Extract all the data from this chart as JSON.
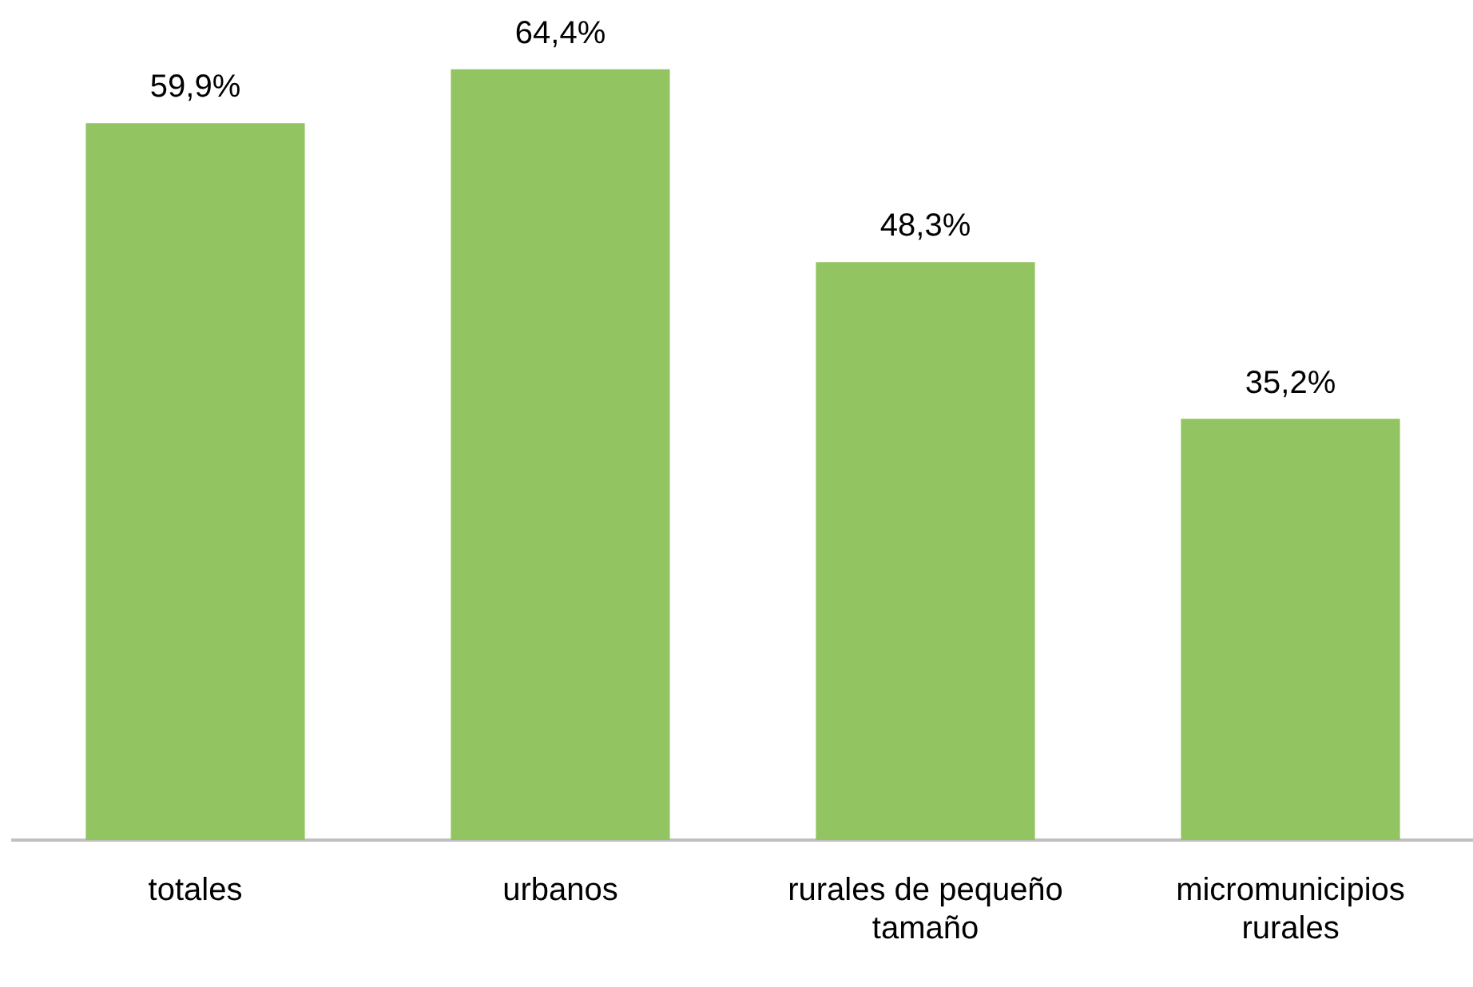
{
  "chart_data": {
    "type": "bar",
    "categories": [
      "totales",
      "urbanos",
      "rurales de pequeño tamaño",
      "micromunicipios rurales"
    ],
    "values": [
      59.9,
      64.4,
      48.3,
      35.2
    ],
    "color": "#93c462",
    "value_labels": [
      "59,9%",
      "64,4%",
      "48,3%",
      "35,2%"
    ],
    "grid": false,
    "legend": false
  }
}
